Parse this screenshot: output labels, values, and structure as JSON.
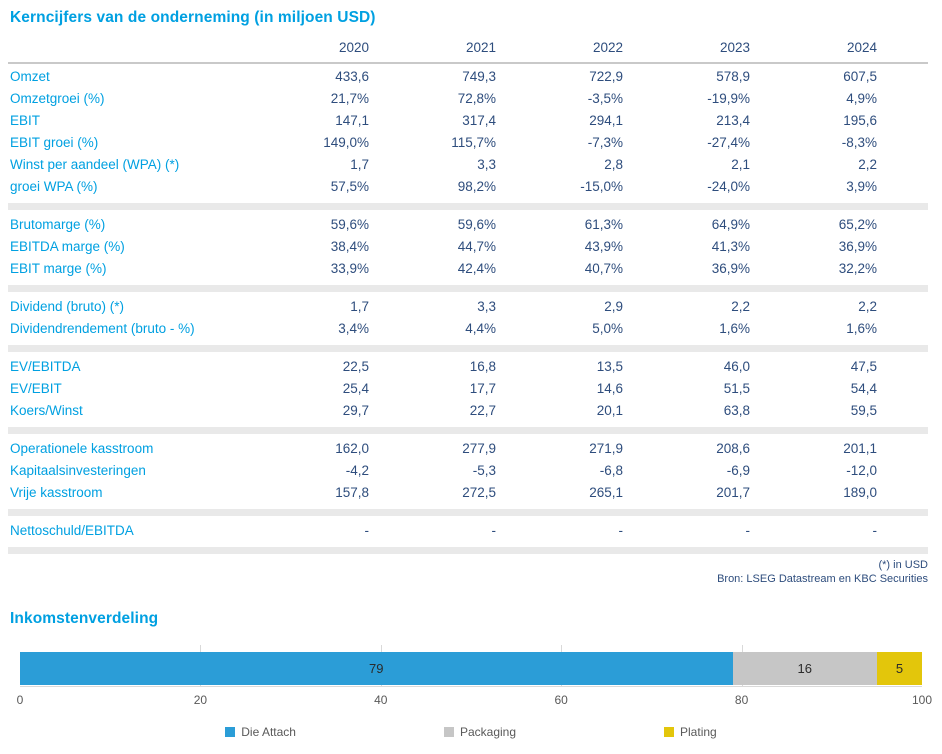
{
  "report": {
    "table_title": "Kerncijfers van de onderneming (in miljoen USD)",
    "years": [
      "2020",
      "2021",
      "2022",
      "2023",
      "2024"
    ],
    "sections": [
      {
        "rows": [
          {
            "label": "Omzet",
            "values": [
              "433,6",
              "749,3",
              "722,9",
              "578,9",
              "607,5"
            ]
          },
          {
            "label": "Omzetgroei (%)",
            "values": [
              "21,7%",
              "72,8%",
              "-3,5%",
              "-19,9%",
              "4,9%"
            ]
          },
          {
            "label": "EBIT",
            "values": [
              "147,1",
              "317,4",
              "294,1",
              "213,4",
              "195,6"
            ]
          },
          {
            "label": "EBIT groei (%)",
            "values": [
              "149,0%",
              "115,7%",
              "-7,3%",
              "-27,4%",
              "-8,3%"
            ]
          },
          {
            "label": "Winst per aandeel (WPA) (*)",
            "values": [
              "1,7",
              "3,3",
              "2,8",
              "2,1",
              "2,2"
            ]
          },
          {
            "label": "groei WPA (%)",
            "values": [
              "57,5%",
              "98,2%",
              "-15,0%",
              "-24,0%",
              "3,9%"
            ]
          }
        ]
      },
      {
        "rows": [
          {
            "label": "Brutomarge (%)",
            "values": [
              "59,6%",
              "59,6%",
              "61,3%",
              "64,9%",
              "65,2%"
            ]
          },
          {
            "label": "EBITDA marge (%)",
            "values": [
              "38,4%",
              "44,7%",
              "43,9%",
              "41,3%",
              "36,9%"
            ]
          },
          {
            "label": "EBIT marge (%)",
            "values": [
              "33,9%",
              "42,4%",
              "40,7%",
              "36,9%",
              "32,2%"
            ]
          }
        ]
      },
      {
        "rows": [
          {
            "label": "Dividend (bruto) (*)",
            "values": [
              "1,7",
              "3,3",
              "2,9",
              "2,2",
              "2,2"
            ]
          },
          {
            "label": "Dividendrendement (bruto - %)",
            "values": [
              "3,4%",
              "4,4%",
              "5,0%",
              "1,6%",
              "1,6%"
            ]
          }
        ]
      },
      {
        "rows": [
          {
            "label": "EV/EBITDA",
            "values": [
              "22,5",
              "16,8",
              "13,5",
              "46,0",
              "47,5"
            ]
          },
          {
            "label": "EV/EBIT",
            "values": [
              "25,4",
              "17,7",
              "14,6",
              "51,5",
              "54,4"
            ]
          },
          {
            "label": "Koers/Winst",
            "values": [
              "29,7",
              "22,7",
              "20,1",
              "63,8",
              "59,5"
            ]
          }
        ]
      },
      {
        "rows": [
          {
            "label": "Operationele kasstroom",
            "values": [
              "162,0",
              "277,9",
              "271,9",
              "208,6",
              "201,1"
            ]
          },
          {
            "label": "Kapitaalsinvesteringen",
            "values": [
              "-4,2",
              "-5,3",
              "-6,8",
              "-6,9",
              "-12,0"
            ]
          },
          {
            "label": "Vrije kasstroom",
            "values": [
              "157,8",
              "272,5",
              "265,1",
              "201,7",
              "189,0"
            ]
          }
        ]
      },
      {
        "rows": [
          {
            "label": "Nettoschuld/EBITDA",
            "values": [
              "-",
              "-",
              "-",
              "-",
              "-"
            ]
          }
        ]
      }
    ],
    "footnote": "(*) in USD",
    "source": "Bron: LSEG Datastream en KBC Securities"
  },
  "chart_data": {
    "type": "bar",
    "orientation": "horizontal-stacked",
    "title": "Inkomstenverdeling",
    "series": [
      {
        "name": "Die Attach",
        "value": 79,
        "color": "#2b9dd7"
      },
      {
        "name": "Packaging",
        "value": 16,
        "color": "#c6c6c6"
      },
      {
        "name": "Plating",
        "value": 5,
        "color": "#e3c60b"
      }
    ],
    "xlim": [
      0,
      100
    ],
    "ticks": [
      0,
      20,
      40,
      60,
      80,
      100
    ],
    "grid": true,
    "legend_position": "bottom"
  },
  "colors": {
    "accent_blue": "#00a0e1",
    "value_navy": "#2e4d7d",
    "separator_gray": "#e9e9e9",
    "axis_gray": "#d9d9d9",
    "tick_text_gray": "#595959"
  }
}
